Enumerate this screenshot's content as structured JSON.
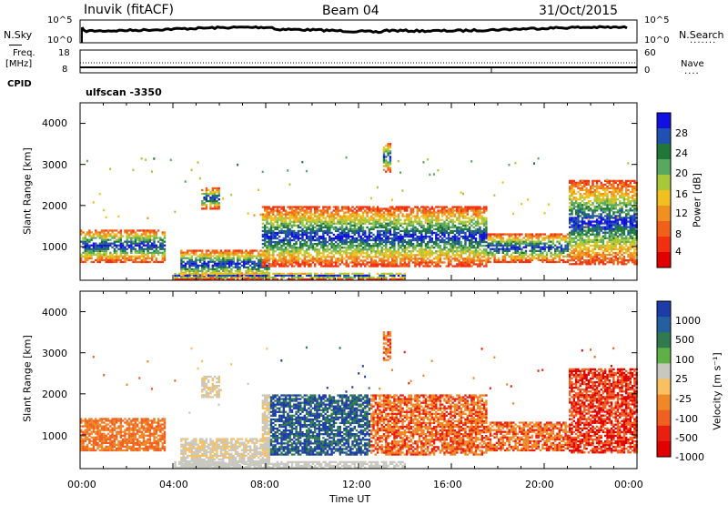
{
  "header": {
    "station": "Inuvik (fitACF)",
    "beam": "Beam 04",
    "date": "31/Oct/2015"
  },
  "strips": {
    "nsky_label": "N.Sky",
    "nsearch_label": "N.Search",
    "nsky_ticks": [
      "10^5",
      "10^0"
    ],
    "nsearch_ticks": [
      "10^5",
      "10^0"
    ],
    "freq_label": "Freq.",
    "freq_unit": "[MHz]",
    "freq_ticks": [
      "18",
      "8"
    ],
    "nave_ticks": [
      "60",
      "0"
    ],
    "nave_label": "Nave",
    "cpid_label": "CPID",
    "cpid_value": "ulfscan -3350"
  },
  "chart_data": [
    {
      "type": "heatmap",
      "name": "power",
      "ylabel": "Slant Range [km]",
      "yticks": [
        "4000",
        "3000",
        "2000",
        "1000"
      ],
      "ylim": [
        180,
        4500
      ],
      "xlim_hours": [
        0,
        24
      ],
      "colorbar_label": "Power [dB]",
      "colorbar_ticks": [
        "28",
        "24",
        "20",
        "16",
        "12",
        "8",
        "4"
      ],
      "colors": [
        "#1010e0",
        "#2050b0",
        "#207838",
        "#58a860",
        "#a8c838",
        "#f0c020",
        "#f09020",
        "#f06018",
        "#f03010",
        "#e00000"
      ]
    },
    {
      "type": "heatmap",
      "name": "velocity",
      "ylabel": "Slant Range [km]",
      "yticks": [
        "4000",
        "3000",
        "2000",
        "1000"
      ],
      "ylim": [
        180,
        4500
      ],
      "xlim_hours": [
        0,
        24
      ],
      "xticks": [
        "00:00",
        "04:00",
        "08:00",
        "12:00",
        "16:00",
        "20:00",
        "00:00"
      ],
      "xlabel": "Time UT",
      "colorbar_label": "Velocity [m s⁻¹]",
      "colorbar_ticks": [
        "1000",
        "500",
        "100",
        "25",
        "-25",
        "-100",
        "-500",
        "-1000"
      ],
      "colors": [
        "#1c3ca8",
        "#2460a0",
        "#307a50",
        "#60b048",
        "#c8c8c0",
        "#f8c060",
        "#f08828",
        "#f06020",
        "#e82010",
        "#e00000"
      ]
    }
  ]
}
